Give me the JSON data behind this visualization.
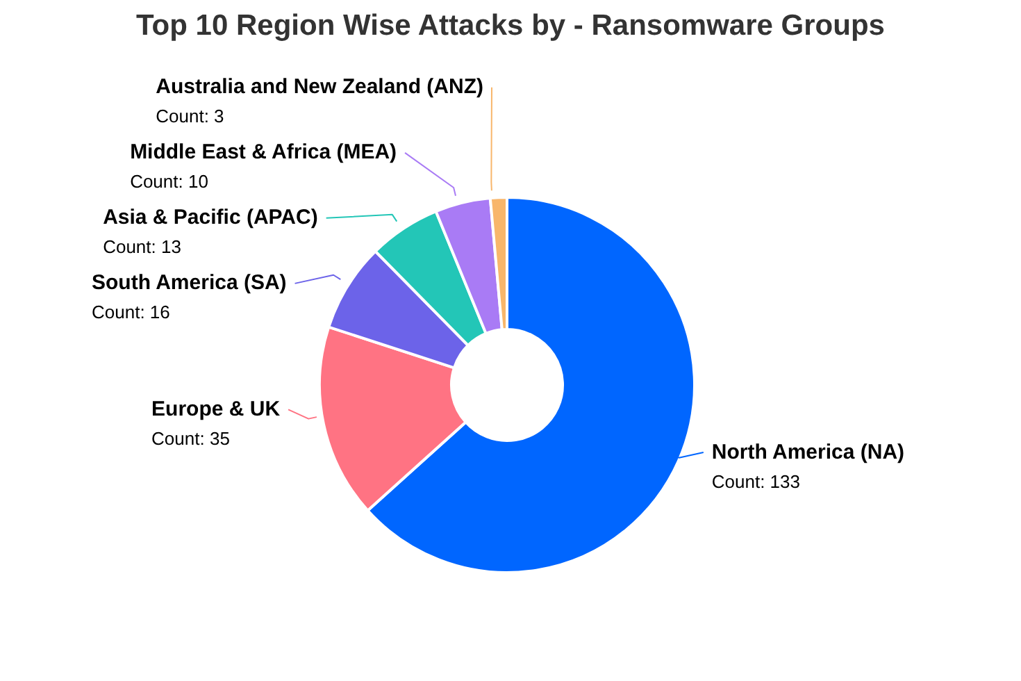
{
  "chart_data": {
    "type": "donut",
    "title": "Top 10 Region Wise Attacks by - Ransomware Groups",
    "categories": [
      "North America (NA)",
      "Europe & UK",
      "South America (SA)",
      "Asia & Pacific (APAC)",
      "Middle East & Africa (MEA)",
      "Australia and New Zealand (ANZ)"
    ],
    "values": [
      133,
      35,
      16,
      13,
      10,
      3
    ],
    "colors": [
      "#0066ff",
      "#ff7383",
      "#6c63e9",
      "#23c6b7",
      "#a97bf5",
      "#f8b66b"
    ],
    "value_labels": [
      "Count: 133",
      "Count: 35",
      "Count: 16",
      "Count: 13",
      "Count: 10",
      "Count: 3"
    ]
  }
}
